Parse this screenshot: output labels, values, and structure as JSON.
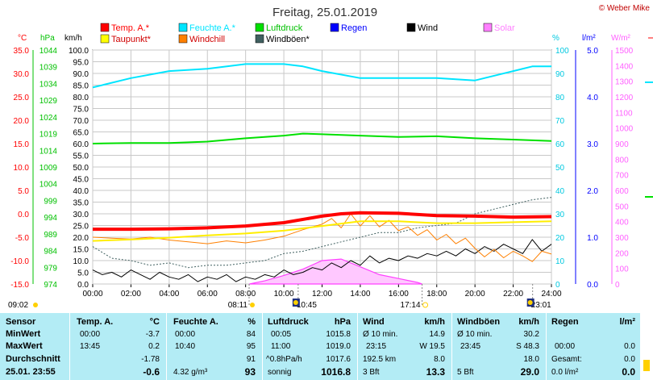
{
  "title": "Freitag, 25.01.2019",
  "credit": "© Weber Mike",
  "legend": [
    {
      "label": "Temp. A.*",
      "color": "#ff0000"
    },
    {
      "label": "Feuchte A.*",
      "color": "#00e5ff"
    },
    {
      "label": "Luftdruck",
      "color": "#00e000"
    },
    {
      "label": "Regen",
      "color": "#0000ff"
    },
    {
      "label": "Wind",
      "color": "#000000"
    },
    {
      "label": "Solar",
      "color": "#ff80ff"
    },
    {
      "label": "Taupunkt*",
      "color": "#ffff00"
    },
    {
      "label": "Windchill",
      "color": "#ff8000"
    },
    {
      "label": "Windböen*",
      "color": "#406060"
    }
  ],
  "axis_units": {
    "temp": "°C",
    "pressure": "hPa",
    "wind": "km/h",
    "humidity": "%",
    "rain": "l/m²",
    "solar": "W/m²"
  },
  "chart_data": {
    "type": "line",
    "x_ticks": [
      "00:00",
      "02:00",
      "04:00",
      "06:00",
      "08:00",
      "10:00",
      "12:00",
      "14:00",
      "16:00",
      "18:00",
      "20:00",
      "22:00",
      "24:00"
    ],
    "temp_ticks": [
      "35.0",
      "30.0",
      "25.0",
      "20.0",
      "15.0",
      "10.0",
      "5.0",
      "0.0",
      "-5.0",
      "-10.0",
      "-15.0"
    ],
    "temp_labels": [
      "35.0",
      "30.0",
      "25.0",
      "20.0",
      "15.0",
      "10.0",
      "5.0",
      "0.0",
      "-5.0",
      "-10.0",
      "-15.0"
    ],
    "pressure_labels": [
      "1044",
      "1039",
      "1034",
      "1029",
      "1024",
      "1019",
      "1014",
      "1009",
      "1004",
      "999",
      "994",
      "989",
      "984",
      "979",
      "974"
    ],
    "wind_labels": [
      "100.0",
      "95.0",
      "90.0",
      "85.0",
      "80.0",
      "75.0",
      "70.0",
      "65.0",
      "60.0",
      "55.0",
      "50.0",
      "45.0",
      "40.0",
      "35.0",
      "30.0",
      "25.0",
      "20.0",
      "15.0",
      "10.0",
      "5.0",
      "0.0"
    ],
    "humidity_labels": [
      "100",
      "90",
      "80",
      "70",
      "60",
      "50",
      "40",
      "30",
      "20",
      "10",
      "0"
    ],
    "rain_labels": [
      "5.0",
      "4.0",
      "3.0",
      "2.0",
      "1.0",
      "0.0"
    ],
    "solar_labels": [
      "1500",
      "1400",
      "1300",
      "1200",
      "1100",
      "1000",
      "900",
      "800",
      "700",
      "600",
      "500",
      "400",
      "300",
      "200",
      "100",
      "0"
    ],
    "series": [
      {
        "name": "Temp. A.*",
        "axis": "temp",
        "points": [
          [
            0,
            -3.3
          ],
          [
            2,
            -3.3
          ],
          [
            4,
            -3.2
          ],
          [
            6,
            -3.0
          ],
          [
            8,
            -2.6
          ],
          [
            10,
            -1.9
          ],
          [
            12,
            -0.5
          ],
          [
            13,
            0.0
          ],
          [
            14,
            0.2
          ],
          [
            16,
            0.1
          ],
          [
            18,
            -0.4
          ],
          [
            20,
            -0.5
          ],
          [
            22,
            -0.7
          ],
          [
            24,
            -0.6
          ]
        ]
      },
      {
        "name": "Feuchte A.*",
        "axis": "humidity",
        "points": [
          [
            0,
            84
          ],
          [
            2,
            88
          ],
          [
            4,
            91
          ],
          [
            6,
            92
          ],
          [
            8,
            94
          ],
          [
            10,
            94
          ],
          [
            11,
            93
          ],
          [
            12,
            91
          ],
          [
            14,
            88
          ],
          [
            16,
            88
          ],
          [
            18,
            88
          ],
          [
            20,
            87
          ],
          [
            22,
            91
          ],
          [
            23,
            93
          ],
          [
            24,
            93
          ]
        ]
      },
      {
        "name": "Luftdruck",
        "axis": "pressure",
        "points": [
          [
            0,
            1016.0
          ],
          [
            2,
            1016.2
          ],
          [
            4,
            1016.2
          ],
          [
            6,
            1016.6
          ],
          [
            8,
            1017.6
          ],
          [
            10,
            1018.4
          ],
          [
            11,
            1019.0
          ],
          [
            12,
            1018.8
          ],
          [
            14,
            1018.4
          ],
          [
            16,
            1018.0
          ],
          [
            18,
            1018.2
          ],
          [
            20,
            1017.6
          ],
          [
            22,
            1017.2
          ],
          [
            24,
            1016.8
          ]
        ]
      },
      {
        "name": "Taupunkt*",
        "axis": "temp",
        "points": [
          [
            0,
            -5.8
          ],
          [
            2,
            -5.5
          ],
          [
            4,
            -5.1
          ],
          [
            6,
            -4.6
          ],
          [
            8,
            -4.2
          ],
          [
            10,
            -3.6
          ],
          [
            12,
            -2.6
          ],
          [
            14,
            -1.6
          ],
          [
            16,
            -1.6
          ],
          [
            18,
            -2.0
          ],
          [
            20,
            -2.0
          ],
          [
            22,
            -1.8
          ],
          [
            24,
            -1.6
          ]
        ]
      },
      {
        "name": "Windchill",
        "axis": "temp",
        "points": [
          [
            0,
            -5.0
          ],
          [
            1,
            -5.2
          ],
          [
            2,
            -5.4
          ],
          [
            3,
            -5.0
          ],
          [
            4,
            -5.6
          ],
          [
            5,
            -6.0
          ],
          [
            6,
            -6.4
          ],
          [
            7,
            -5.8
          ],
          [
            8,
            -6.2
          ],
          [
            9,
            -5.6
          ],
          [
            10,
            -4.8
          ],
          [
            11,
            -3.4
          ],
          [
            12,
            -2.2
          ],
          [
            12.5,
            -1.0
          ],
          [
            13,
            -3.0
          ],
          [
            13.5,
            0.0
          ],
          [
            14,
            -2.6
          ],
          [
            14.5,
            -0.4
          ],
          [
            15,
            -2.8
          ],
          [
            15.5,
            -1.4
          ],
          [
            16,
            -3.6
          ],
          [
            16.5,
            -2.8
          ],
          [
            17,
            -4.6
          ],
          [
            17.5,
            -3.4
          ],
          [
            18,
            -5.6
          ],
          [
            18.5,
            -4.4
          ],
          [
            19,
            -6.4
          ],
          [
            19.5,
            -5.2
          ],
          [
            20,
            -7.4
          ],
          [
            20.5,
            -9.2
          ],
          [
            21,
            -7.6
          ],
          [
            21.5,
            -9.4
          ],
          [
            22,
            -8.0
          ],
          [
            22.5,
            -9.0
          ],
          [
            23,
            -10.2
          ],
          [
            23.5,
            -8.0
          ],
          [
            24,
            -8.6
          ]
        ]
      },
      {
        "name": "Wind",
        "axis": "wind",
        "points": [
          [
            0,
            6
          ],
          [
            0.5,
            4
          ],
          [
            1,
            5
          ],
          [
            1.5,
            3
          ],
          [
            2,
            6
          ],
          [
            2.5,
            4
          ],
          [
            3,
            2
          ],
          [
            3.5,
            5
          ],
          [
            4,
            3
          ],
          [
            4.5,
            2
          ],
          [
            5,
            4
          ],
          [
            5.5,
            1
          ],
          [
            6,
            3
          ],
          [
            6.5,
            2
          ],
          [
            7,
            4
          ],
          [
            7.5,
            1
          ],
          [
            8,
            3
          ],
          [
            8.5,
            2
          ],
          [
            9,
            4
          ],
          [
            9.5,
            3
          ],
          [
            10,
            6
          ],
          [
            10.5,
            4
          ],
          [
            11,
            5
          ],
          [
            11.5,
            7
          ],
          [
            12,
            6
          ],
          [
            12.5,
            9
          ],
          [
            13,
            7
          ],
          [
            13.5,
            10
          ],
          [
            14,
            8
          ],
          [
            14.5,
            12
          ],
          [
            15,
            9
          ],
          [
            15.5,
            11
          ],
          [
            16,
            10
          ],
          [
            16.5,
            12
          ],
          [
            17,
            11
          ],
          [
            17.5,
            13
          ],
          [
            18,
            12
          ],
          [
            18.5,
            14
          ],
          [
            19,
            12
          ],
          [
            19.5,
            15
          ],
          [
            20,
            13
          ],
          [
            20.5,
            16
          ],
          [
            21,
            14
          ],
          [
            21.5,
            17
          ],
          [
            22,
            15
          ],
          [
            22.5,
            13
          ],
          [
            23,
            19
          ],
          [
            23.5,
            14
          ],
          [
            24,
            17
          ]
        ]
      },
      {
        "name": "Windböen*",
        "axis": "wind",
        "points": [
          [
            0,
            16
          ],
          [
            1,
            11
          ],
          [
            2,
            10
          ],
          [
            3,
            8
          ],
          [
            4,
            9
          ],
          [
            5,
            7
          ],
          [
            6,
            8
          ],
          [
            7,
            8
          ],
          [
            8,
            9
          ],
          [
            9,
            10
          ],
          [
            10,
            13
          ],
          [
            11,
            14
          ],
          [
            12,
            16
          ],
          [
            13,
            18
          ],
          [
            14,
            20
          ],
          [
            15,
            22
          ],
          [
            16,
            22
          ],
          [
            17,
            24
          ],
          [
            18,
            25
          ],
          [
            19,
            26
          ],
          [
            20,
            30
          ],
          [
            21,
            32
          ],
          [
            22,
            34
          ],
          [
            23,
            36
          ],
          [
            24,
            37
          ]
        ]
      },
      {
        "name": "Solar",
        "axis": "solar",
        "points": [
          [
            8.2,
            0
          ],
          [
            9,
            20
          ],
          [
            10,
            55
          ],
          [
            11,
            95
          ],
          [
            12,
            150
          ],
          [
            13,
            160
          ],
          [
            14,
            110
          ],
          [
            15,
            60
          ],
          [
            16,
            35
          ],
          [
            17,
            10
          ],
          [
            17.23,
            0
          ]
        ]
      }
    ]
  },
  "events": {
    "left_time": "09:02",
    "sunrise": "08:11",
    "moon1": "10:45",
    "sunset": "17:14",
    "moon2": "23:01"
  },
  "table": {
    "row_labels": [
      "Sensor",
      "MinWert",
      "MaxWert",
      "Durchschnitt",
      "25.01. 23:55"
    ],
    "temp": {
      "header": "Temp. A.",
      "unit": "°C",
      "min_time": "00:00",
      "min": "-3.7",
      "max_time": "13:45",
      "max": "0.2",
      "avg": "-1.78",
      "cur": "-0.6"
    },
    "hum": {
      "header": "Feuchte A.",
      "unit": "%",
      "min_time": "00:00",
      "min": "84",
      "max_time": "10:40",
      "max": "95",
      "avg": "91",
      "abs": "4.32 g/m³",
      "cur": "93"
    },
    "press": {
      "header": "Luftdruck",
      "unit": "hPa",
      "min_time": "00:05",
      "min": "1015.8",
      "max_time": "11:00",
      "max": "1019.0",
      "trend": "^0.8hPa/h",
      "avg": "1017.6",
      "state": "sonnig",
      "cur": "1016.8"
    },
    "wind": {
      "header": "Wind",
      "unit": "km/h",
      "r1a": "Ø 10 min.",
      "r1b": "14.9",
      "r2a": "23:15",
      "r2b": "W 19.5",
      "r3a": "192.5 km",
      "r3b": "8.0",
      "r4a": "3 Bft",
      "cur": "13.3"
    },
    "gust": {
      "header": "Windböen",
      "unit": "km/h",
      "r1a": "Ø 10 min.",
      "r1b": "30.2",
      "r2a": "23:45",
      "r2b": "S 48.3",
      "r3b": "18.0",
      "r4a": "5 Bft",
      "cur": "29.0"
    },
    "rain": {
      "header": "Regen",
      "unit": "l/m²",
      "r2a": "00:00",
      "r2b": "0.0",
      "r3a": "Gesamt:",
      "r3b": "0.0",
      "r4a": "0.0 l/m²",
      "cur": "0.0"
    }
  }
}
